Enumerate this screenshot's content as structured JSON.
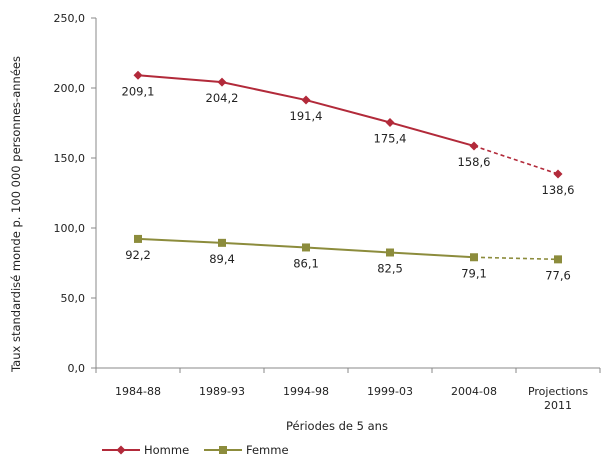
{
  "chart_data": {
    "type": "line",
    "title": "",
    "xlabel": "Périodes de 5 ans",
    "ylabel": "Taux standardisé monde p. 100 000 personnes-années",
    "categories": [
      [
        "1984-88"
      ],
      [
        "1989-93"
      ],
      [
        "1994-98"
      ],
      [
        "1999-03"
      ],
      [
        "2004-08"
      ],
      [
        "Projections",
        "2011"
      ]
    ],
    "ylim": [
      0,
      250
    ],
    "yticks": [
      "0,0",
      "50,0",
      "100,0",
      "150,0",
      "200,0",
      "250,0"
    ],
    "grid": false,
    "legend_position": "bottom-left",
    "series": [
      {
        "name": "Homme",
        "color": "#b22a3a",
        "marker": "diamond",
        "values": [
          209.1,
          204.2,
          191.4,
          175.4,
          158.6,
          138.6
        ],
        "labels": [
          "209,1",
          "204,2",
          "191,4",
          "175,4",
          "158,6",
          "138,6"
        ],
        "projection_dashed_last_segment": true
      },
      {
        "name": "Femme",
        "color": "#8c8c3c",
        "marker": "square",
        "values": [
          92.2,
          89.4,
          86.1,
          82.5,
          79.1,
          77.6
        ],
        "labels": [
          "92,2",
          "89,4",
          "86,1",
          "82,5",
          "79,1",
          "77,6"
        ],
        "projection_dashed_last_segment": true
      }
    ]
  }
}
